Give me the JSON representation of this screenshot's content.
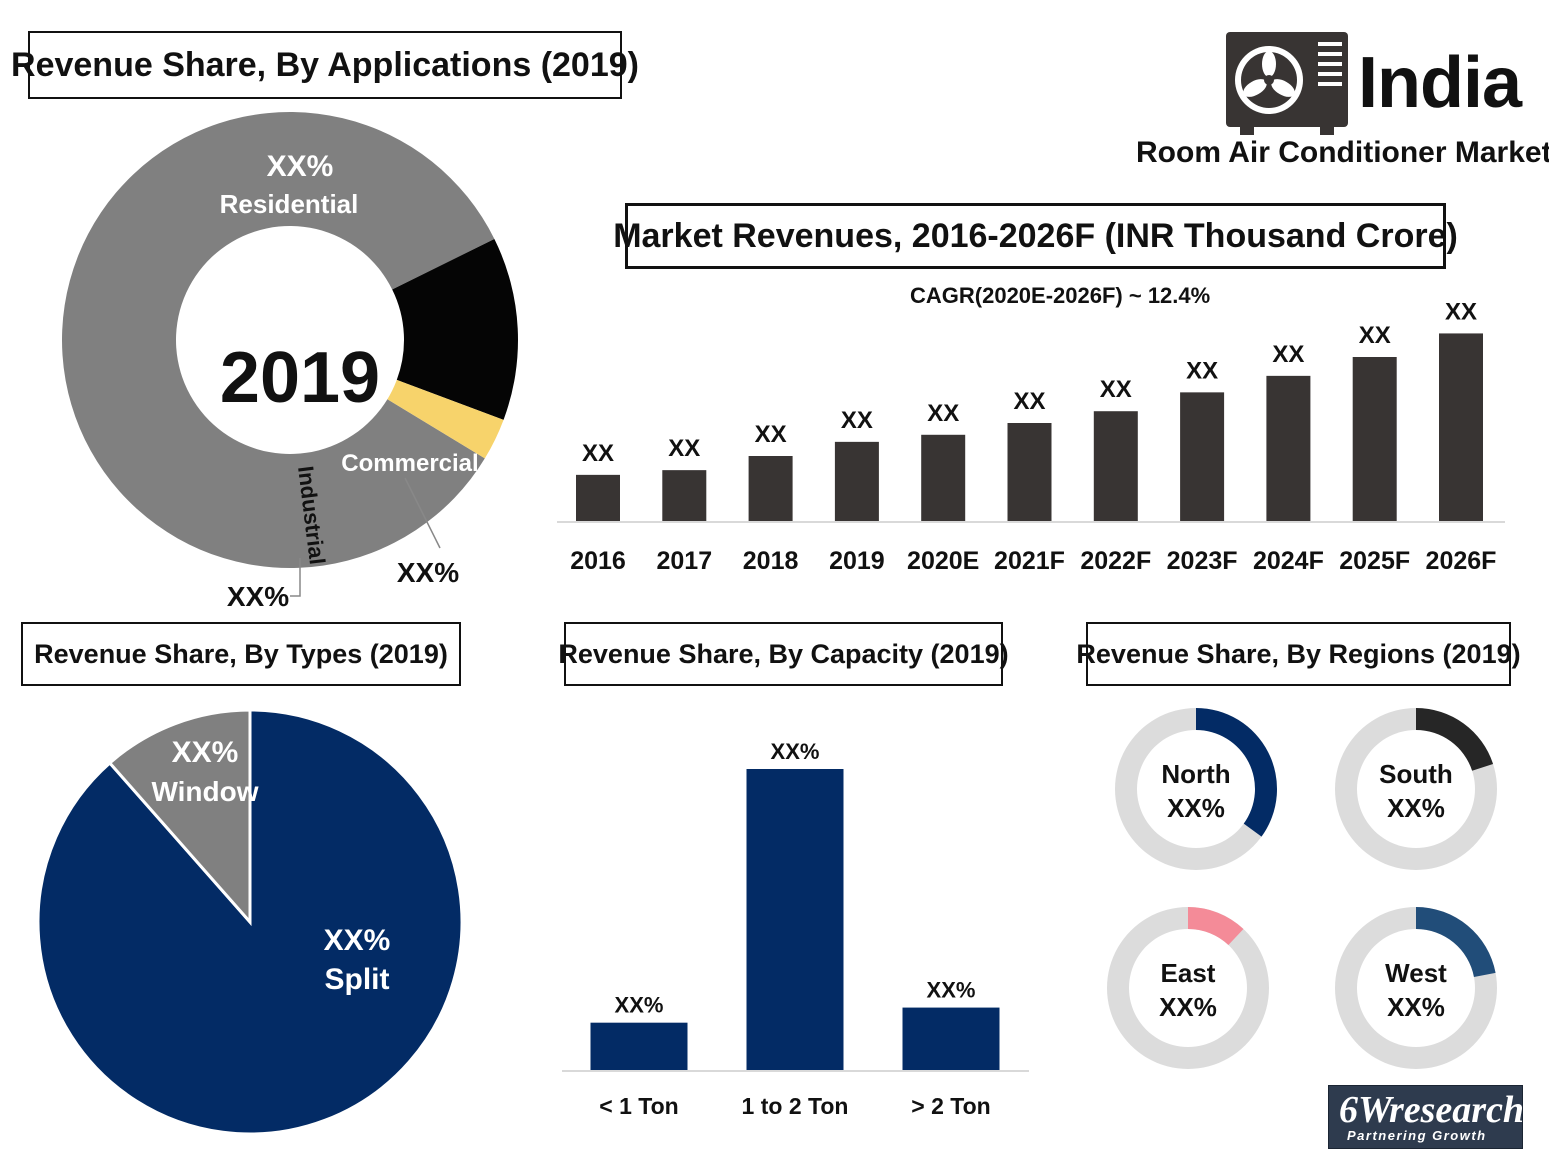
{
  "header": {
    "country": "India",
    "subtitle": "Room Air Conditioner Market"
  },
  "brand": {
    "name": "6Wresearch",
    "tagline": "Partnering Growth"
  },
  "colors": {
    "navy": "#032b65",
    "gray": "#808080",
    "dark": "#383433",
    "yellow": "#f7d36b",
    "black": "#050505",
    "lightgray": "#dcdcdc",
    "pink": "#f48b98",
    "steel": "#214d79"
  },
  "chart_data": [
    {
      "id": "applications",
      "type": "pie",
      "title": "Revenue Share, By Applications (2019)",
      "center_label": "2019",
      "slices": [
        {
          "name": "Residential",
          "value": 84,
          "label": "XX%",
          "color": "#808080"
        },
        {
          "name": "Commercial",
          "value": 13,
          "label": "XX%",
          "color": "#050505"
        },
        {
          "name": "Industrial",
          "value": 3,
          "label": "XX%",
          "color": "#f7d36b"
        }
      ]
    },
    {
      "id": "revenues",
      "type": "bar",
      "title": "Market Revenues, 2016-2026F (INR Thousand Crore)",
      "annotation": "CAGR(2020E-2026F) ~ 12.4%",
      "categories": [
        "2016",
        "2017",
        "2018",
        "2019",
        "2020E",
        "2021F",
        "2022F",
        "2023F",
        "2024F",
        "2025F",
        "2026F"
      ],
      "values": [
        10,
        11,
        14,
        17,
        18.5,
        21,
        23.5,
        27.5,
        31,
        35,
        40
      ],
      "data_labels": [
        "XX",
        "XX",
        "XX",
        "XX",
        "XX",
        "XX",
        "XX",
        "XX",
        "XX",
        "XX",
        "XX"
      ],
      "ylim": [
        0,
        42
      ],
      "color": "#383433"
    },
    {
      "id": "types",
      "type": "pie",
      "title": "Revenue Share, By Types (2019)",
      "slices": [
        {
          "name": "Split",
          "value": 88.5,
          "label": "XX%",
          "color": "#032b65"
        },
        {
          "name": "Window",
          "value": 11.5,
          "label": "XX%",
          "color": "#808080"
        }
      ]
    },
    {
      "id": "capacity",
      "type": "bar",
      "title": "Revenue Share, By Capacity (2019)",
      "categories": [
        "< 1 Ton",
        "1 to 2 Ton",
        "> 2 Ton"
      ],
      "values": [
        16,
        100,
        21
      ],
      "data_labels": [
        "XX%",
        "XX%",
        "XX%"
      ],
      "ylim": [
        0,
        100
      ],
      "color": "#032b65"
    },
    {
      "id": "regions",
      "type": "pie",
      "title": "Revenue Share, By Regions (2019)",
      "items": [
        {
          "name": "North",
          "label": "XX%",
          "value": 35,
          "color": "#032b65"
        },
        {
          "name": "South",
          "label": "XX%",
          "value": 20,
          "color": "#262626"
        },
        {
          "name": "East",
          "label": "XX%",
          "value": 12,
          "color": "#f48b98"
        },
        {
          "name": "West",
          "label": "XX%",
          "value": 22,
          "color": "#214d79"
        }
      ]
    }
  ]
}
